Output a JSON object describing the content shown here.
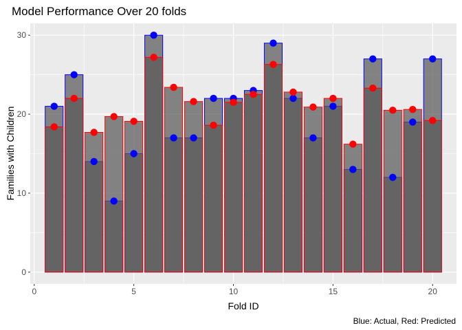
{
  "chart_data": {
    "type": "bar",
    "title": "Model Performance Over 20 folds",
    "xlabel": "Fold ID",
    "ylabel": "Families with Children",
    "caption": "Blue: Actual, Red: Predicted",
    "x": [
      1,
      2,
      3,
      4,
      5,
      6,
      7,
      8,
      9,
      10,
      11,
      12,
      13,
      14,
      15,
      16,
      17,
      18,
      19,
      20
    ],
    "xlim": [
      -0.2,
      21.2
    ],
    "ylim": [
      -1.5,
      31.5
    ],
    "xticks": [
      0,
      5,
      10,
      15,
      20
    ],
    "yticks": [
      0,
      10,
      20,
      30
    ],
    "grid": true,
    "series": [
      {
        "name": "Actual",
        "values": [
          21,
          25,
          14,
          9,
          15,
          30,
          17,
          17,
          22,
          22,
          23,
          29,
          22,
          17,
          21,
          13,
          27,
          12,
          19,
          27
        ]
      },
      {
        "name": "Predicted",
        "values": [
          18.4,
          22,
          17.7,
          19.7,
          19.1,
          27.2,
          23.4,
          21.6,
          18.6,
          21.5,
          22.5,
          26.3,
          22.8,
          20.9,
          22,
          16.2,
          23.3,
          20.5,
          20.6,
          19.2
        ]
      }
    ],
    "colors": {
      "panel": "#ebebeb",
      "grid_major": "#ffffff",
      "bar_fill_light": "#868686",
      "bar_fill_dark": "#636363",
      "actual": "#0000ff",
      "predicted": "#ff0000",
      "tick_text": "#4d4d4d"
    }
  }
}
